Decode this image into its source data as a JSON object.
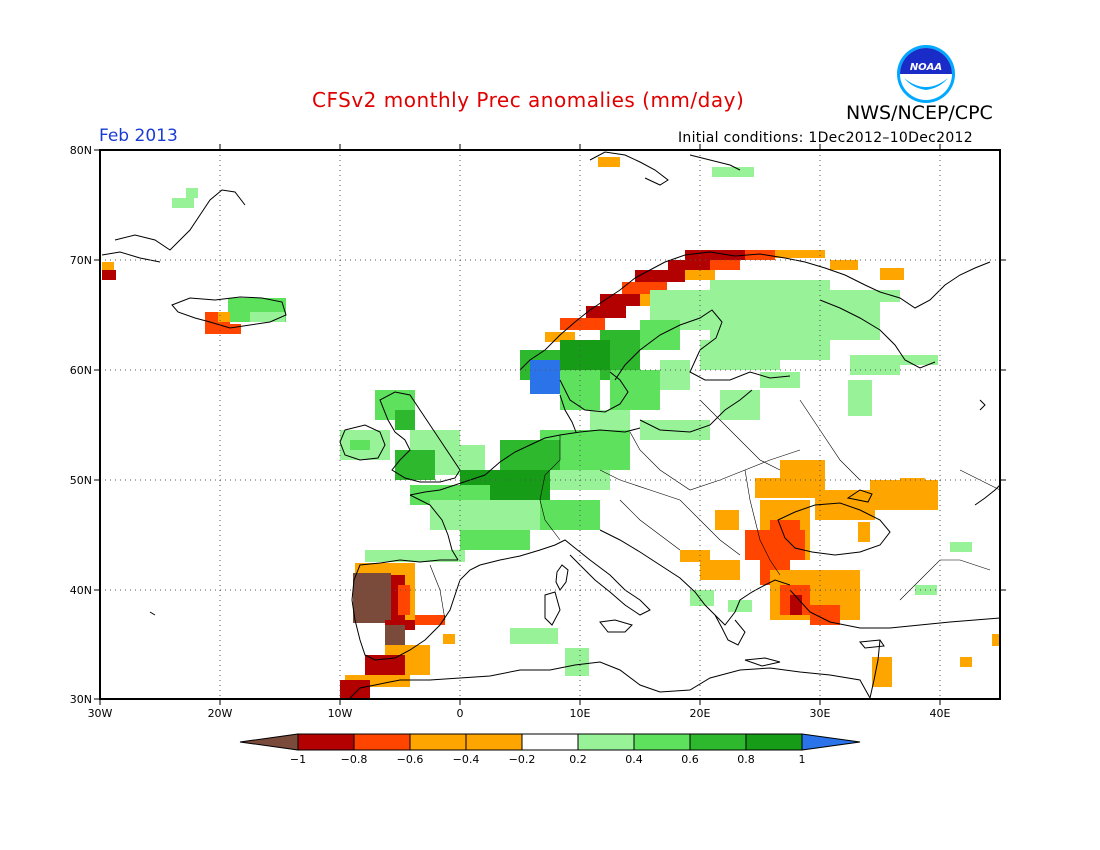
{
  "header": {
    "title": "CFSv2 monthly Prec anomalies (mm/day)",
    "agency": "NWS/NCEP/CPC",
    "month": "Feb 2013",
    "initial_conditions": "Initial conditions: 1Dec2012–10Dec2012",
    "logo_text": "NOAA"
  },
  "axes": {
    "lat_labels": [
      "80N",
      "70N",
      "60N",
      "50N",
      "40N",
      "30N"
    ],
    "lon_labels": [
      "30W",
      "20W",
      "10W",
      "0",
      "10E",
      "20E",
      "30E",
      "40E"
    ]
  },
  "colorbar": {
    "tick_labels": [
      "−1",
      "−0.8",
      "−0.6",
      "−0.4",
      "−0.2",
      "0.2",
      "0.4",
      "0.6",
      "0.8",
      "1"
    ],
    "colors": [
      "#7a4a3a",
      "#b30000",
      "#ff4500",
      "#ffa500",
      "#ffffff",
      "#98f398",
      "#5ee25e",
      "#2eb82e",
      "#169c16",
      "#2a73e8"
    ]
  },
  "colors": {
    "title": "#e00000",
    "month": "#1a3cd6",
    "noaa_blue": "#1a2cc8",
    "noaa_cyan": "#00a8ff"
  }
}
